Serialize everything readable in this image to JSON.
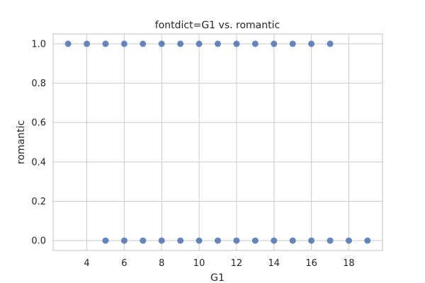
{
  "chart_data": {
    "type": "scatter",
    "title": "fontdict=G1 vs. romantic",
    "xlabel": "G1",
    "ylabel": "romantic",
    "xlim": [
      2.2,
      19.8
    ],
    "ylim": [
      -0.05,
      1.05
    ],
    "xticks": [
      "4",
      "6",
      "8",
      "10",
      "12",
      "14",
      "16",
      "18"
    ],
    "yticks": [
      "0.0",
      "0.2",
      "0.4",
      "0.6",
      "0.8",
      "1.0"
    ],
    "grid": true,
    "color": "#4c72b0",
    "series": [
      {
        "points": [
          {
            "x": 3,
            "y": 1
          },
          {
            "x": 4,
            "y": 1
          },
          {
            "x": 5,
            "y": 1
          },
          {
            "x": 6,
            "y": 1
          },
          {
            "x": 7,
            "y": 1
          },
          {
            "x": 8,
            "y": 1
          },
          {
            "x": 9,
            "y": 1
          },
          {
            "x": 10,
            "y": 1
          },
          {
            "x": 11,
            "y": 1
          },
          {
            "x": 12,
            "y": 1
          },
          {
            "x": 13,
            "y": 1
          },
          {
            "x": 14,
            "y": 1
          },
          {
            "x": 15,
            "y": 1
          },
          {
            "x": 16,
            "y": 1
          },
          {
            "x": 17,
            "y": 1
          },
          {
            "x": 5,
            "y": 0
          },
          {
            "x": 6,
            "y": 0
          },
          {
            "x": 7,
            "y": 0
          },
          {
            "x": 8,
            "y": 0
          },
          {
            "x": 9,
            "y": 0
          },
          {
            "x": 10,
            "y": 0
          },
          {
            "x": 11,
            "y": 0
          },
          {
            "x": 12,
            "y": 0
          },
          {
            "x": 13,
            "y": 0
          },
          {
            "x": 14,
            "y": 0
          },
          {
            "x": 15,
            "y": 0
          },
          {
            "x": 16,
            "y": 0
          },
          {
            "x": 17,
            "y": 0
          },
          {
            "x": 18,
            "y": 0
          },
          {
            "x": 19,
            "y": 0
          }
        ]
      }
    ]
  }
}
